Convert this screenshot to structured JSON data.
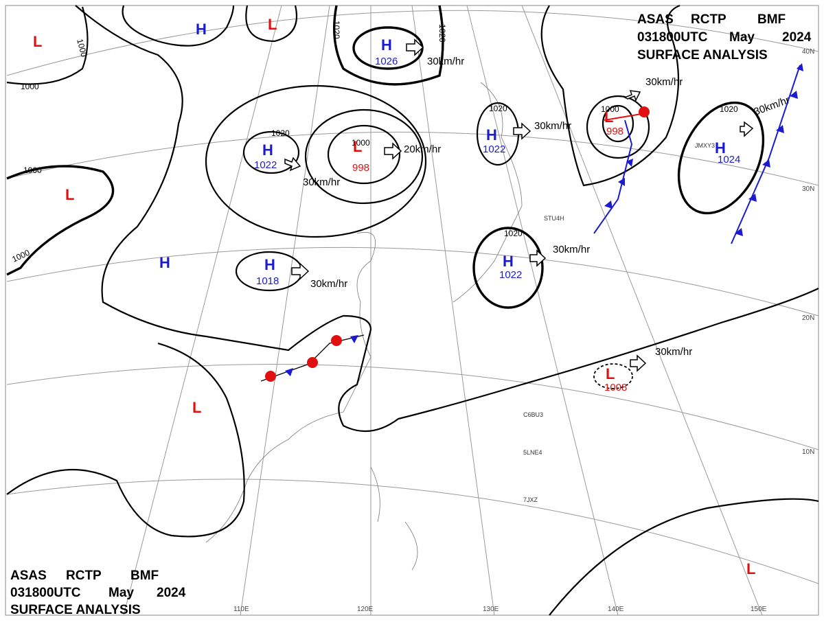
{
  "header": {
    "line1": [
      "ASAS",
      "RCTP",
      "BMF"
    ],
    "line2": [
      "031800UTC",
      "May",
      "2024"
    ],
    "line3": "SURFACE ANALYSIS"
  },
  "centers": [
    {
      "type": "H"
    },
    {
      "type": "L"
    },
    {
      "type": "L"
    },
    {
      "type": "H",
      "pressure": 1026
    },
    {
      "type": "H",
      "pressure": 1022
    },
    {
      "type": "L",
      "pressure": 998
    },
    {
      "type": "H",
      "pressure": 1022
    },
    {
      "type": "L",
      "pressure": 998
    },
    {
      "type": "H",
      "pressure": 1024
    },
    {
      "type": "L"
    },
    {
      "type": "H"
    },
    {
      "type": "H",
      "pressure": 1018
    },
    {
      "type": "H",
      "pressure": 1022
    },
    {
      "type": "L",
      "pressure": 1008
    },
    {
      "type": "L"
    },
    {
      "type": "L"
    }
  ],
  "isobar_labels": [
    1000,
    1000,
    1000,
    1000,
    1020,
    1020,
    1020,
    1000,
    1020,
    1000,
    1020,
    1020
  ],
  "motions": [
    "30km/hr",
    "20km/hr",
    "30km/hr",
    "30km/hr",
    "30km/hr",
    "30km/hr",
    "30km/hr",
    "30km/hr",
    "30km/hr"
  ],
  "grid_labels": {
    "lon": [
      "110E",
      "120E",
      "130E",
      "140E",
      "150E"
    ],
    "lat": [
      "40N",
      "30N",
      "20N",
      "10N"
    ]
  },
  "stations": [
    "C6BU3",
    "5LNE4",
    "7JXZ",
    "JMXY3",
    "STU4H"
  ]
}
